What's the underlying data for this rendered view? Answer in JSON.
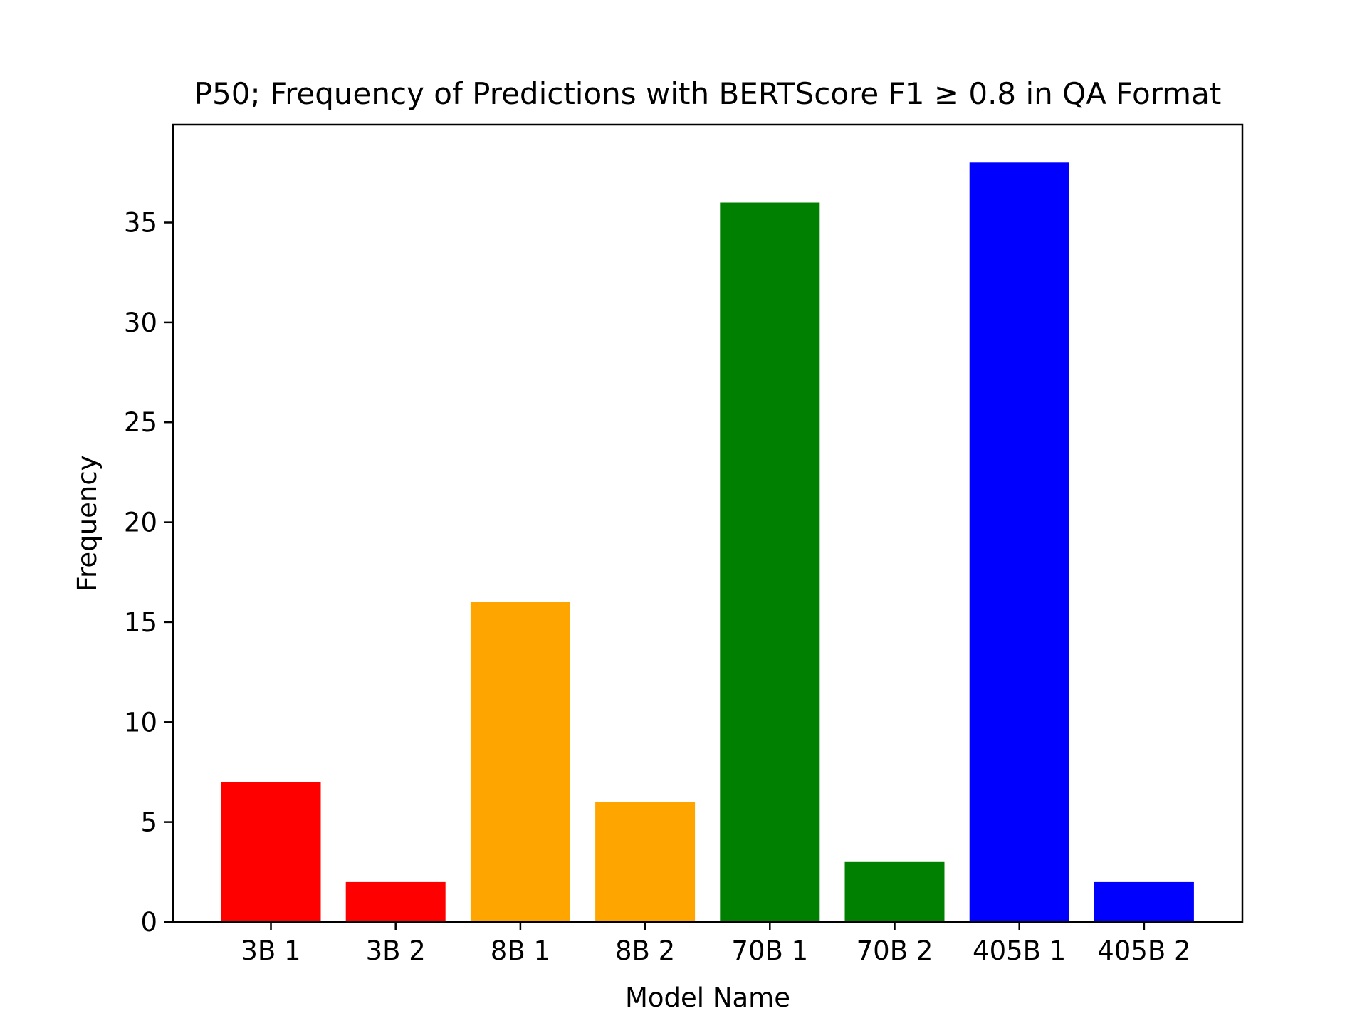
{
  "chart_data": {
    "type": "bar",
    "title": "P50; Frequency of Predictions with BERTScore F1 ≥ 0.8 in QA Format",
    "xlabel": "Model Name",
    "ylabel": "Frequency",
    "categories": [
      "3B 1",
      "3B 2",
      "8B 1",
      "8B 2",
      "70B 1",
      "70B 2",
      "405B 1",
      "405B 2"
    ],
    "values": [
      7,
      2,
      16,
      6,
      36,
      3,
      38,
      2
    ],
    "colors": [
      "#ff0000",
      "#ff0000",
      "#ffa500",
      "#ffa500",
      "#008000",
      "#008000",
      "#0000ff",
      "#0000ff"
    ],
    "ylim": [
      0,
      39.9
    ],
    "yticks": [
      "0",
      "5",
      "10",
      "15",
      "20",
      "25",
      "30",
      "35"
    ],
    "grid": false,
    "legend": "none"
  }
}
